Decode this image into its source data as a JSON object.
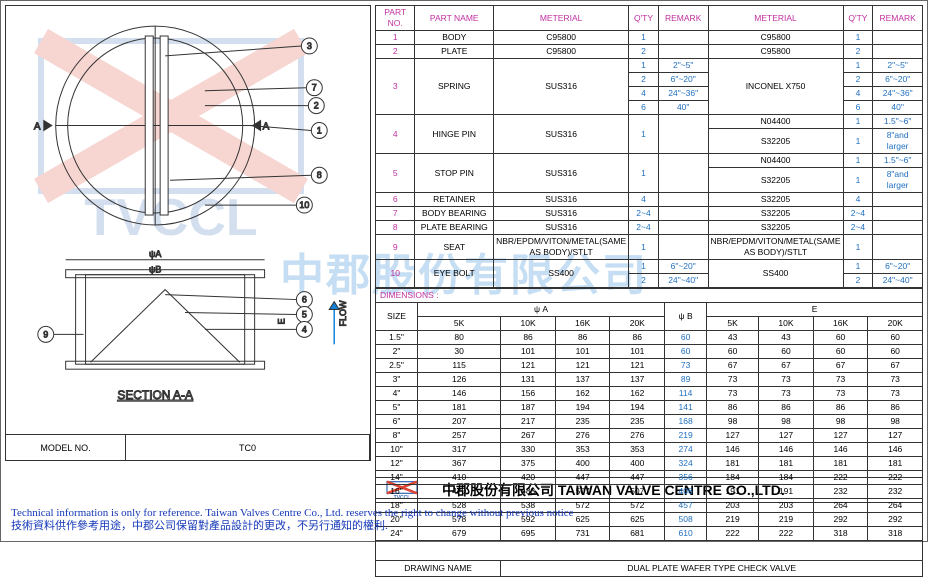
{
  "model": {
    "label": "MODEL NO.",
    "value": "TC0"
  },
  "partHeader": [
    "PART NO.",
    "PART NAME",
    "METERIAL",
    "Q'TY",
    "REMARK",
    "METERIAL",
    "Q'TY",
    "REMARK"
  ],
  "parts": [
    {
      "no": "1",
      "name": "BODY",
      "m1": "C95800",
      "q1": "1",
      "r1": "",
      "m2": "C95800",
      "q2": "1",
      "r2": ""
    },
    {
      "no": "2",
      "name": "PLATE",
      "m1": "C95800",
      "q1": "2",
      "r1": "",
      "m2": "C95800",
      "q2": "2",
      "r2": ""
    }
  ],
  "spring": {
    "no": "3",
    "name": "SPRING",
    "m1": "SUS316",
    "m2": "INCONEL X750",
    "rows": [
      {
        "q1": "1",
        "r1": "2\"~5\"",
        "q2": "1",
        "r2": "2\"~5\""
      },
      {
        "q1": "2",
        "r1": "6\"~20\"",
        "q2": "2",
        "r2": "6\"~20\""
      },
      {
        "q1": "4",
        "r1": "24\"~36\"",
        "q2": "4",
        "r2": "24\"~36\""
      },
      {
        "q1": "6",
        "r1": "40\"",
        "q2": "6",
        "r2": "40\""
      }
    ]
  },
  "hinge": {
    "no": "4",
    "name": "HINGE PIN",
    "m1": "SUS316",
    "q1": "1",
    "rows": [
      {
        "m2": "N04400",
        "q2": "1",
        "r2": "1.5\"~6\""
      },
      {
        "m2": "S32205",
        "q2": "1",
        "r2": "8\"and larger"
      }
    ]
  },
  "stop": {
    "no": "5",
    "name": "STOP  PIN",
    "m1": "SUS316",
    "q1": "1",
    "rows": [
      {
        "m2": "N04400",
        "q2": "1",
        "r2": "1.5\"~6\""
      },
      {
        "m2": "S32205",
        "q2": "1",
        "r2": "8\"and larger"
      }
    ]
  },
  "parts2": [
    {
      "no": "6",
      "name": "RETAINER",
      "m1": "SUS316",
      "q1": "4",
      "r1": "",
      "m2": "S32205",
      "q2": "4",
      "r2": ""
    },
    {
      "no": "7",
      "name": "BODY BEARING",
      "m1": "SUS316",
      "q1": "2~4",
      "r1": "",
      "m2": "S32205",
      "q2": "2~4",
      "r2": ""
    },
    {
      "no": "8",
      "name": "PLATE BEARING",
      "m1": "SUS316",
      "q1": "2~4",
      "r1": "",
      "m2": "S32205",
      "q2": "2~4",
      "r2": ""
    },
    {
      "no": "9",
      "name": "SEAT",
      "m1": "NBR/EPDM/VITON/METAL(SAME AS BODY)/STLT",
      "q1": "1",
      "r1": "",
      "m2": "NBR/EPDM/VITON/METAL(SAME AS BODY)/STLT",
      "q2": "1",
      "r2": ""
    }
  ],
  "eyebolt": {
    "no": "10",
    "name": "EYE BOLT",
    "m1": "SS400",
    "m2": "SS400",
    "rows": [
      {
        "q1": "1",
        "r1": "6\"~20\"",
        "q2": "1",
        "r2": "6\"~20\""
      },
      {
        "q1": "2",
        "r1": "24\"~40\"",
        "q2": "2",
        "r2": "24\"~40\""
      }
    ]
  },
  "dimLabel": "DIMENSIONS :",
  "dimHeader": {
    "size": "SIZE",
    "a": "ψ A",
    "b": "ψ B",
    "e": "E",
    "sub": [
      "5K",
      "10K",
      "16K",
      "20K"
    ]
  },
  "dims": [
    {
      "s": "1.5\"",
      "a": [
        "80",
        "86",
        "86",
        "86"
      ],
      "b": "60",
      "e": [
        "43",
        "43",
        "60",
        "60"
      ]
    },
    {
      "s": "2\"",
      "a": [
        "30",
        "101",
        "101",
        "101"
      ],
      "b": "60",
      "e": [
        "60",
        "60",
        "60",
        "60"
      ]
    },
    {
      "s": "2.5\"",
      "a": [
        "115",
        "121",
        "121",
        "121"
      ],
      "b": "73",
      "e": [
        "67",
        "67",
        "67",
        "67"
      ]
    },
    {
      "s": "3\"",
      "a": [
        "126",
        "131",
        "137",
        "137"
      ],
      "b": "89",
      "e": [
        "73",
        "73",
        "73",
        "73"
      ]
    },
    {
      "s": "4\"",
      "a": [
        "146",
        "156",
        "162",
        "162"
      ],
      "b": "114",
      "e": [
        "73",
        "73",
        "73",
        "73"
      ]
    },
    {
      "s": "5\"",
      "a": [
        "181",
        "187",
        "194",
        "194"
      ],
      "b": "141",
      "e": [
        "86",
        "86",
        "86",
        "86"
      ]
    },
    {
      "s": "6\"",
      "a": [
        "207",
        "217",
        "235",
        "235"
      ],
      "b": "168",
      "e": [
        "98",
        "98",
        "98",
        "98"
      ]
    },
    {
      "s": "8\"",
      "a": [
        "257",
        "267",
        "276",
        "276"
      ],
      "b": "219",
      "e": [
        "127",
        "127",
        "127",
        "127"
      ]
    },
    {
      "s": "10\"",
      "a": [
        "317",
        "330",
        "353",
        "353"
      ],
      "b": "274",
      "e": [
        "146",
        "146",
        "146",
        "146"
      ]
    },
    {
      "s": "12\"",
      "a": [
        "367",
        "375",
        "400",
        "400"
      ],
      "b": "324",
      "e": [
        "181",
        "181",
        "181",
        "181"
      ]
    },
    {
      "s": "14\"",
      "a": [
        "410",
        "420",
        "447",
        "447"
      ],
      "b": "356",
      "e": [
        "184",
        "184",
        "222",
        "222"
      ]
    },
    {
      "s": "16\"",
      "a": [
        "470",
        "483",
        "507",
        "507"
      ],
      "b": "406",
      "e": [
        "191",
        "191",
        "232",
        "232"
      ]
    },
    {
      "s": "18\"",
      "a": [
        "528",
        "538",
        "572",
        "572"
      ],
      "b": "457",
      "e": [
        "203",
        "203",
        "264",
        "264"
      ]
    },
    {
      "s": "20\"",
      "a": [
        "578",
        "592",
        "625",
        "625"
      ],
      "b": "508",
      "e": [
        "219",
        "219",
        "292",
        "292"
      ]
    },
    {
      "s": "24\"",
      "a": [
        "679",
        "695",
        "731",
        "681"
      ],
      "b": "610",
      "e": [
        "222",
        "222",
        "318",
        "318"
      ]
    }
  ],
  "drawingName": {
    "label": "DRAWING NAME",
    "value": "DUAL PLATE WAFER TYPE CHECK VALVE"
  },
  "company": {
    "cn": "中郡股份有限公司",
    "en": "TAIWAN VALVE CENTRE CO.,LTD."
  },
  "footer": {
    "l1": "Technical information is only for reference. Taiwan Valves Centre Co., Ltd. reserves the right to change without previous notice",
    "l2": "技術資料供作參考用途，中郡公司保留對產品設計的更改，不另行通知的權利."
  },
  "section": "SECTION A-A",
  "watermark_cn": "中郡股份有限公司",
  "logo_text": "TVCCL"
}
